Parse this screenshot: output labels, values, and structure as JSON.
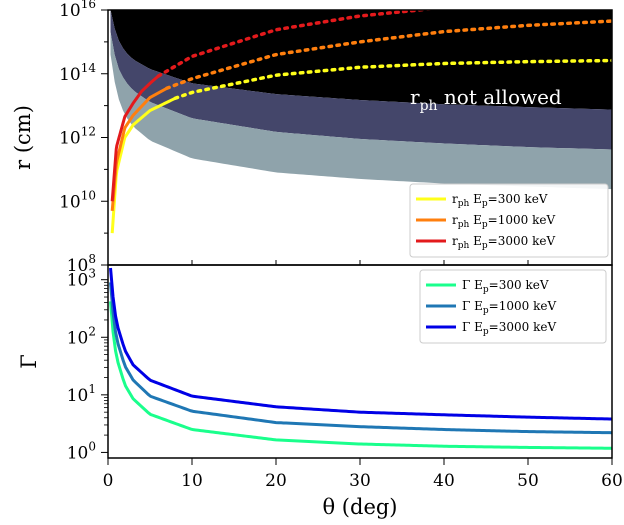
{
  "chart_data": [
    {
      "type": "line",
      "panel": "top",
      "ylabel": "r (cm)",
      "yscale": "log",
      "ylim": [
        100000000.0,
        1e+16
      ],
      "xlim": [
        0,
        60
      ],
      "ytick_labels": [
        {
          "base": "10",
          "exp": "8",
          "value": 100000000.0
        },
        {
          "base": "10",
          "exp": "10",
          "value": 10000000000.0
        },
        {
          "base": "10",
          "exp": "12",
          "value": 1000000000000.0
        },
        {
          "base": "10",
          "exp": "14",
          "value": 100000000000000.0
        },
        {
          "base": "10",
          "exp": "16",
          "value": 1e+16
        }
      ],
      "annotation": {
        "main": "r",
        "sub": "ph",
        "rest": " not allowed",
        "color": "#ffffff"
      },
      "forbidden_region": {
        "color": "#000000",
        "boundary": {
          "x": [
            0.3,
            1,
            2,
            3,
            5,
            10,
            20,
            30,
            40,
            50,
            60
          ],
          "y": [
            1e+16,
            1500000000000000.0,
            500000000000000.0,
            280000000000000.0,
            140000000000000.0,
            50000000000000.0,
            23000000000000.0,
            15000000000000.0,
            11000000000000.0,
            9000000000000.0,
            7500000000000.0
          ]
        }
      },
      "bands": [
        {
          "color": "#44466a",
          "upper": {
            "x": [
              0.3,
              1,
              2,
              3,
              5,
              10,
              20,
              30,
              40,
              50,
              60
            ],
            "y": [
              1e+16,
              1500000000000000.0,
              500000000000000.0,
              280000000000000.0,
              140000000000000.0,
              50000000000000.0,
              23000000000000.0,
              15000000000000.0,
              11000000000000.0,
              9000000000000.0,
              7500000000000.0
            ]
          },
          "lower": {
            "x": [
              0.3,
              1,
              2,
              3,
              5,
              10,
              20,
              30,
              40,
              50,
              60
            ],
            "y": [
              2000000000000000.0,
              200000000000000.0,
              60000000000000.0,
              30000000000000.0,
              13000000000000.0,
              4000000000000.0,
              1500000000000.0,
              900000000000.0,
              650000000000.0,
              500000000000.0,
              420000000000.0
            ]
          }
        },
        {
          "color": "#8fa3ab",
          "upper": {
            "x": [
              0.3,
              1,
              2,
              3,
              5,
              10,
              20,
              30,
              40,
              50,
              60
            ],
            "y": [
              2000000000000000.0,
              200000000000000.0,
              60000000000000.0,
              30000000000000.0,
              13000000000000.0,
              4000000000000.0,
              1500000000000.0,
              900000000000.0,
              650000000000.0,
              500000000000.0,
              420000000000.0
            ]
          },
          "lower": {
            "x": [
              0.3,
              1,
              2,
              3,
              5,
              10,
              20,
              30,
              40,
              50,
              60
            ],
            "y": [
              400000000000000.0,
              25000000000000.0,
              5000000000000.0,
              2200000000000.0,
              800000000000.0,
              220000000000.0,
              80000000000.0,
              50000000000.0,
              36000000000.0,
              29000000000.0,
              24000000000.0
            ]
          }
        }
      ],
      "series": [
        {
          "name": "r",
          "name_sub": "ph",
          "name_rest": " E",
          "name_sub2": "p",
          "name_tail": "=300 keV",
          "color": "#ffff1a",
          "x": [
            0.5,
            1,
            2,
            3,
            5,
            8,
            10,
            20,
            30,
            40,
            50,
            60
          ],
          "y": [
            1000000000.0,
            80000000000.0,
            1000000000000.0,
            2500000000000.0,
            7000000000000.0,
            17000000000000.0,
            26000000000000.0,
            90000000000000.0,
            160000000000000.0,
            210000000000000.0,
            240000000000000.0,
            260000000000000.0
          ],
          "solid_until_x": 8
        },
        {
          "name": "r",
          "name_sub": "ph",
          "name_rest": " E",
          "name_sub2": "p",
          "name_tail": "=1000 keV",
          "color": "#ff7f0e",
          "x": [
            0.5,
            1,
            2,
            3,
            5,
            7,
            10,
            20,
            30,
            40,
            50,
            60
          ],
          "y": [
            5000000000.0,
            160000000000.0,
            2000000000000.0,
            5000000000000.0,
            18000000000000.0,
            35000000000000.0,
            70000000000000.0,
            400000000000000.0,
            1000000000000000.0,
            2100000000000000.0,
            3300000000000000.0,
            4500000000000000.0
          ],
          "solid_until_x": 7
        },
        {
          "name": "r",
          "name_sub": "ph",
          "name_rest": " E",
          "name_sub2": "p",
          "name_tail": "=3000 keV",
          "color": "#e31a1c",
          "x": [
            0.5,
            1,
            2,
            3,
            4,
            5,
            6,
            10,
            20,
            30,
            40,
            50,
            60
          ],
          "y": [
            10000000000.0,
            500000000000.0,
            4500000000000.0,
            12000000000000.0,
            28000000000000.0,
            50000000000000.0,
            85000000000000.0,
            350000000000000.0,
            2400000000000000.0,
            6500000000000000.0,
            1.2e+16,
            1.8e+16,
            2.2e+16
          ],
          "solid_until_x": 6
        }
      ],
      "legend_position": "lower right"
    },
    {
      "type": "line",
      "panel": "bottom",
      "ylabel": "Γ",
      "xlabel": "θ (deg)",
      "yscale": "log",
      "ylim": [
        0.8,
        1800
      ],
      "xlim": [
        0,
        60
      ],
      "xticks": [
        "0",
        "10",
        "20",
        "30",
        "40",
        "50",
        "60"
      ],
      "ytick_labels": [
        {
          "base": "10",
          "exp": "0",
          "value": 1
        },
        {
          "base": "10",
          "exp": "1",
          "value": 10
        },
        {
          "base": "10",
          "exp": "2",
          "value": 100
        },
        {
          "base": "10",
          "exp": "3",
          "value": 1000
        }
      ],
      "series": [
        {
          "name": "Γ E",
          "name_sub2": "p",
          "name_tail": "=300 keV",
          "color": "#1aff8c",
          "x": [
            0.3,
            0.5,
            1,
            2,
            3,
            5,
            10,
            20,
            30,
            40,
            50,
            60
          ],
          "y": [
            420,
            160,
            45,
            15,
            8.5,
            4.6,
            2.5,
            1.65,
            1.4,
            1.28,
            1.22,
            1.18
          ]
        },
        {
          "name": "Γ E",
          "name_sub2": "p",
          "name_tail": "=1000 keV",
          "color": "#1f77b4",
          "x": [
            0.3,
            0.5,
            1,
            2,
            3,
            5,
            10,
            20,
            30,
            40,
            50,
            60
          ],
          "y": [
            900,
            350,
            95,
            32,
            18,
            9.5,
            5.2,
            3.3,
            2.8,
            2.5,
            2.3,
            2.2
          ]
        },
        {
          "name": "Γ E",
          "name_sub2": "p",
          "name_tail": "=3000 keV",
          "color": "#0000e6",
          "x": [
            0.3,
            0.5,
            1,
            2,
            3,
            5,
            10,
            20,
            30,
            40,
            50,
            60
          ],
          "y": [
            1600,
            650,
            180,
            60,
            33,
            18,
            9.5,
            6.2,
            5.0,
            4.5,
            4.1,
            3.8
          ]
        }
      ],
      "legend_position": "top right"
    }
  ]
}
